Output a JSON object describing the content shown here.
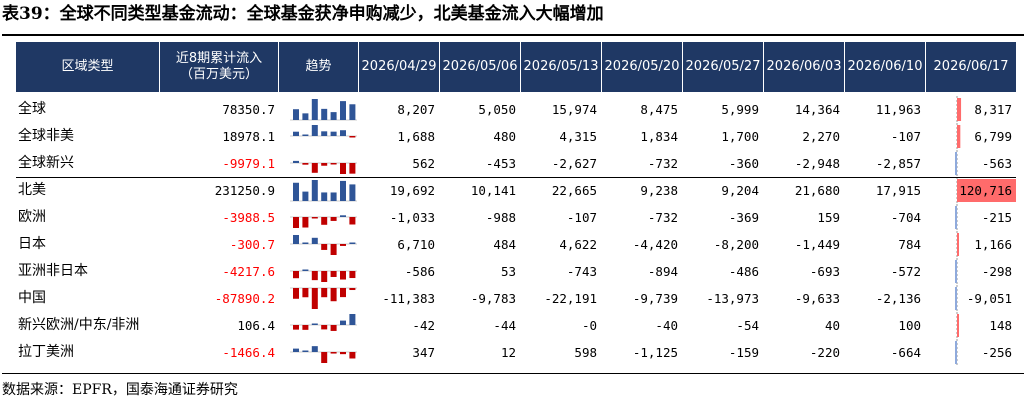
{
  "title": "表39：全球不同类型基金流动：全球基金获净申购减少，北美基金流入大幅增加",
  "source": "数据来源：EPFR，国泰海通证券研究",
  "colors": {
    "header_bg": "#1f3864",
    "pos_bar": "#2f5597",
    "neg_bar": "#c00000",
    "db_pos": "#ff6b6b",
    "db_neg": "#8faadc"
  },
  "headers": {
    "region": "区域类型",
    "cumulative_line1": "近8期累计流入",
    "cumulative_line2": "（百万美元）",
    "trend": "趋势",
    "dates": [
      "2026/04/29",
      "2026/05/06",
      "2026/05/13",
      "2026/05/20",
      "2026/05/27",
      "2026/06/03",
      "2026/06/10",
      "2026/06/17"
    ]
  },
  "rows": [
    {
      "region": "全球",
      "cumulative": "78350.7",
      "values": [
        "8,207",
        "5,050",
        "15,974",
        "8,475",
        "5,999",
        "14,364",
        "11,963",
        "8,317"
      ]
    },
    {
      "region": "全球非美",
      "cumulative": "18978.1",
      "values": [
        "1,688",
        "480",
        "4,315",
        "1,834",
        "1,700",
        "2,270",
        "-107",
        "6,799"
      ]
    },
    {
      "region": "全球新兴",
      "cumulative": "-9979.1",
      "values": [
        "562",
        "-453",
        "-2,627",
        "-732",
        "-360",
        "-2,948",
        "-2,857",
        "-563"
      ]
    },
    {
      "region": "北美",
      "cumulative": "231250.9",
      "values": [
        "19,692",
        "10,141",
        "22,665",
        "9,238",
        "9,204",
        "21,680",
        "17,915",
        "120,716"
      ]
    },
    {
      "region": "欧洲",
      "cumulative": "-3988.5",
      "values": [
        "-1,033",
        "-988",
        "-107",
        "-732",
        "-369",
        "159",
        "-704",
        "-215"
      ]
    },
    {
      "region": "日本",
      "cumulative": "-300.7",
      "values": [
        "6,710",
        "484",
        "4,622",
        "-4,420",
        "-8,200",
        "-1,449",
        "784",
        "1,166"
      ]
    },
    {
      "region": "亚洲非日本",
      "cumulative": "-4217.6",
      "values": [
        "-586",
        "53",
        "-743",
        "-894",
        "-486",
        "-693",
        "-572",
        "-298"
      ]
    },
    {
      "region": "中国",
      "cumulative": "-87890.2",
      "values": [
        "-11,383",
        "-9,783",
        "-22,191",
        "-9,739",
        "-13,973",
        "-9,633",
        "-2,136",
        "-9,051"
      ]
    },
    {
      "region": "新兴欧洲/中东/非洲",
      "cumulative": "106.4",
      "values": [
        "-42",
        "-44",
        "-0",
        "-40",
        "-54",
        "40",
        "100",
        "148"
      ]
    },
    {
      "region": "拉丁美洲",
      "cumulative": "-1466.4",
      "values": [
        "347",
        "12",
        "598",
        "-1,125",
        "-159",
        "-220",
        "-664",
        "-256"
      ]
    }
  ]
}
